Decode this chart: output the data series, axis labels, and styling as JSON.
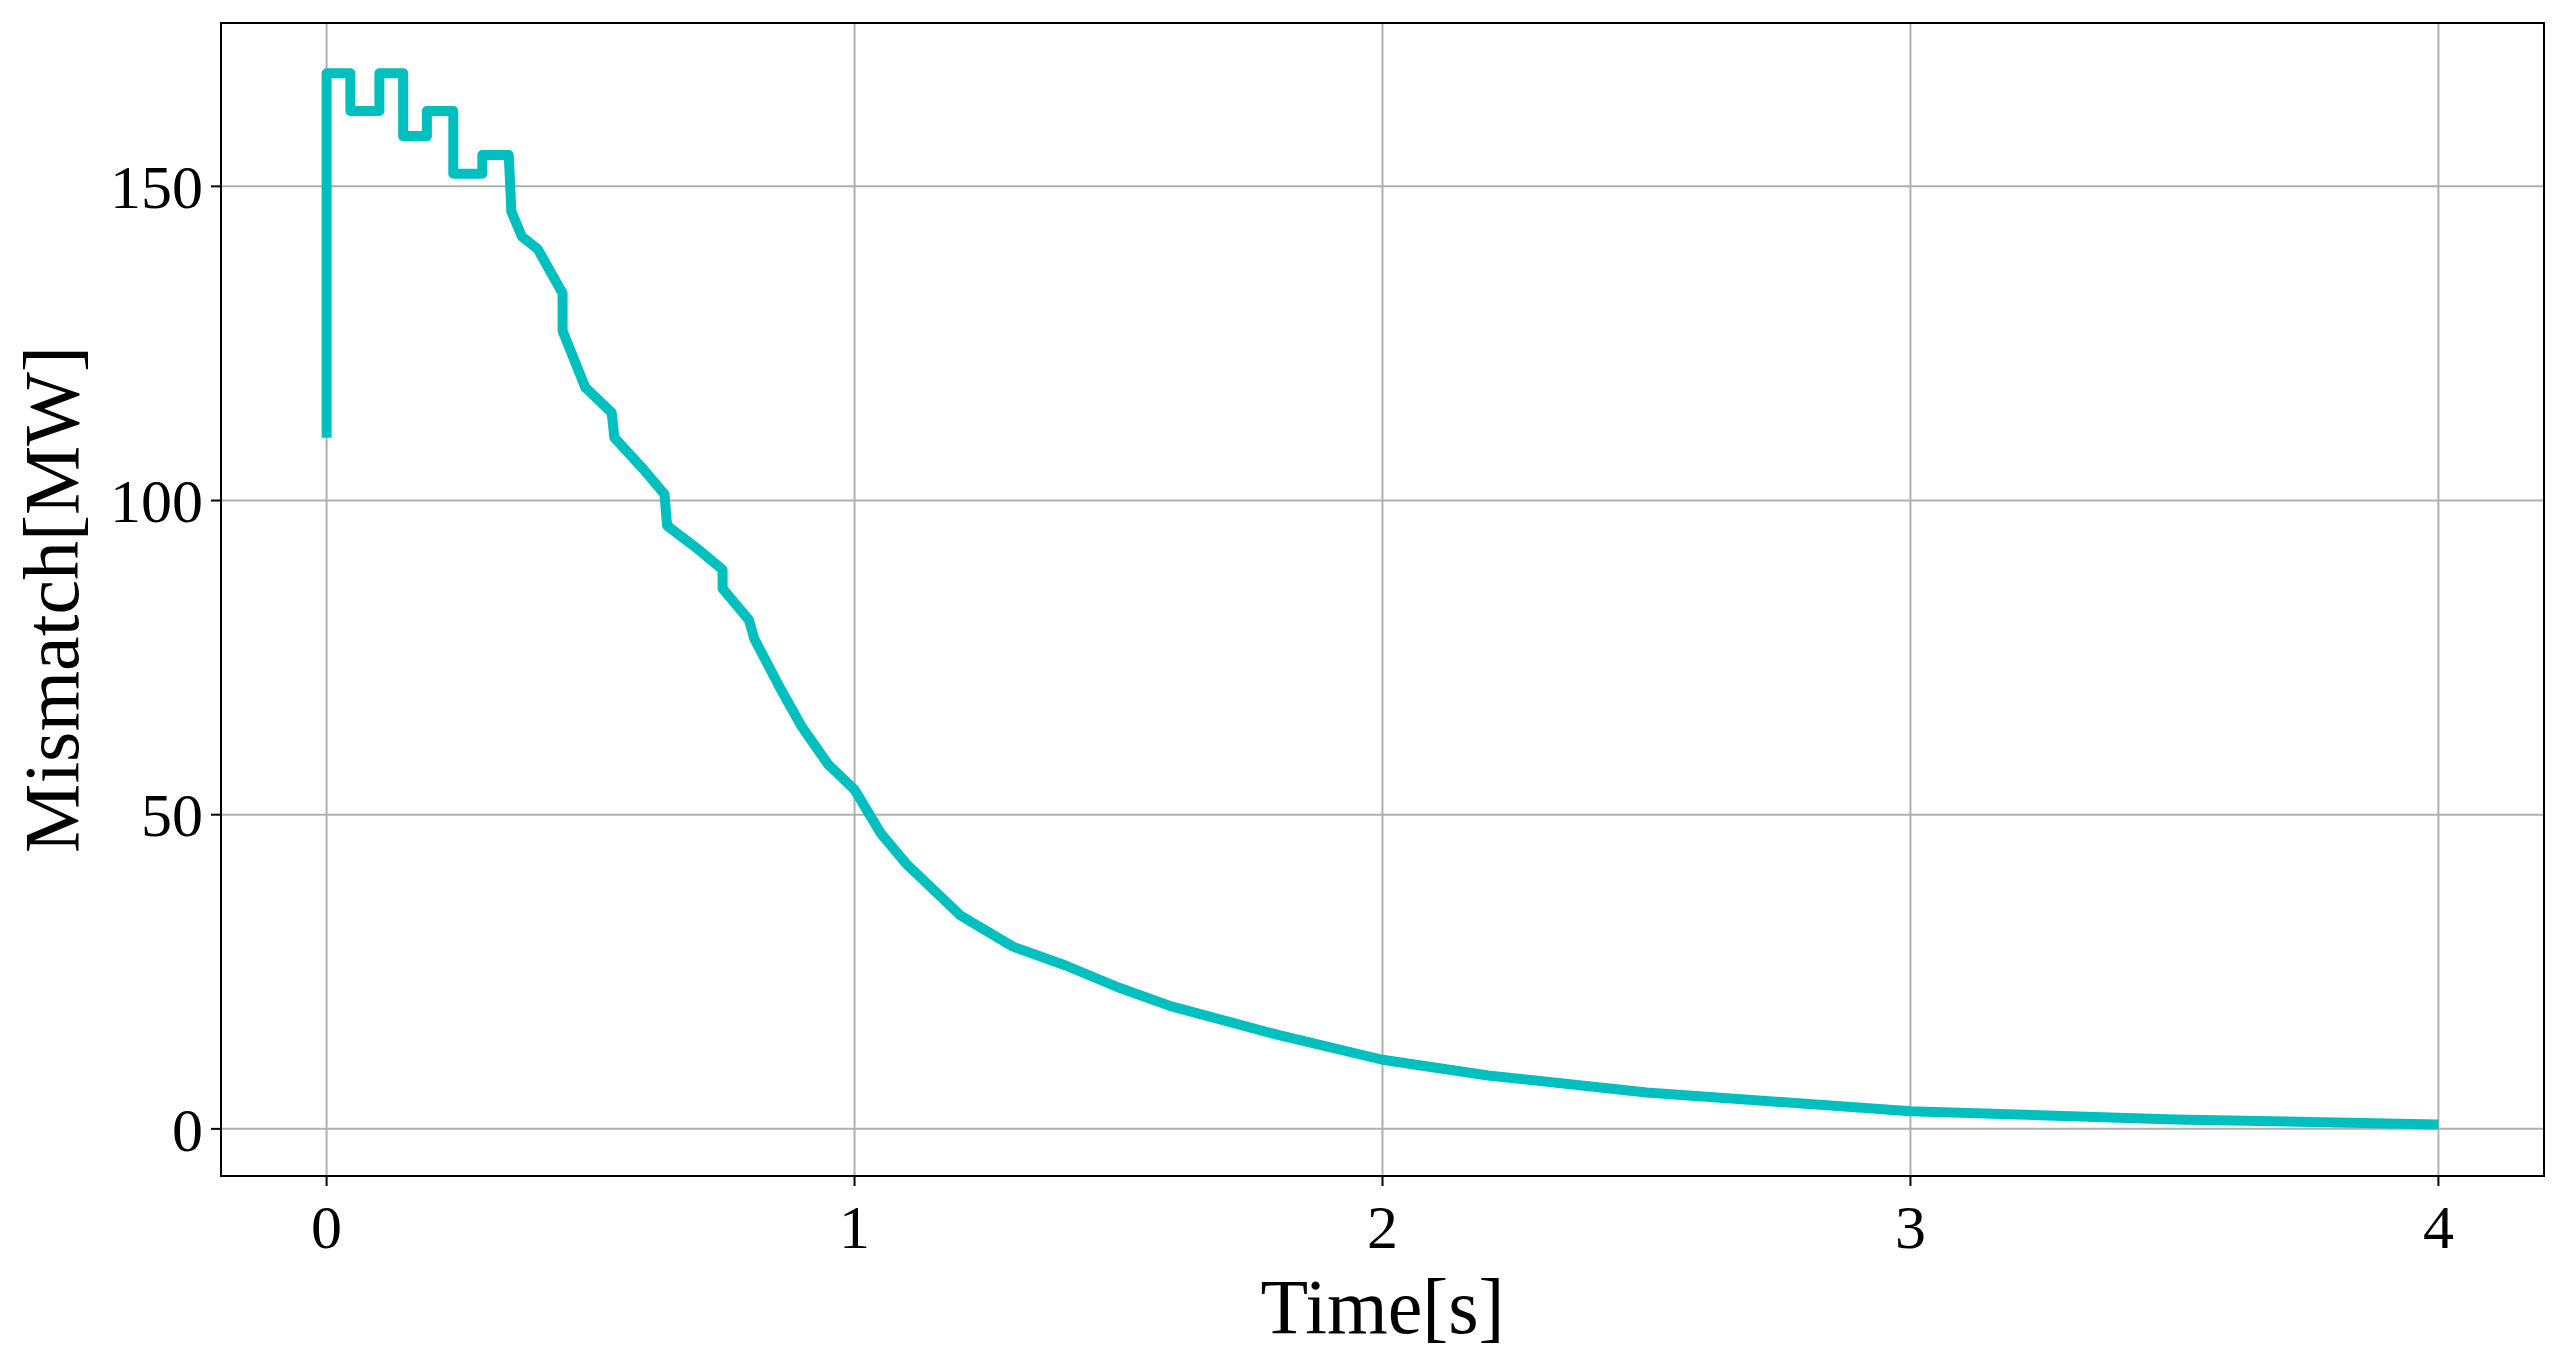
{
  "chart_data": {
    "type": "line",
    "xlabel": "Time[s]",
    "ylabel": "Mismatch[MW]",
    "xlim": [
      -0.2,
      4.2
    ],
    "ylim": [
      -7.5,
      176
    ],
    "xticks": [
      0,
      1,
      2,
      3,
      4
    ],
    "yticks": [
      0,
      50,
      100,
      150
    ],
    "grid": true,
    "marker": "none",
    "line_style": "solid",
    "series": [
      {
        "color": "#00bfbf",
        "x": [
          0,
          0,
          0.045,
          0.045,
          0.1,
          0.1,
          0.145,
          0.145,
          0.19,
          0.19,
          0.24,
          0.24,
          0.295,
          0.295,
          0.345,
          0.35,
          0.37,
          0.4,
          0.447,
          0.447,
          0.49,
          0.54,
          0.545,
          0.6,
          0.64,
          0.645,
          0.7,
          0.75,
          0.75,
          0.8,
          0.81,
          0.86,
          0.9,
          0.95,
          1.0,
          1.05,
          1.1,
          1.2,
          1.3,
          1.4,
          1.5,
          1.6,
          1.8,
          2.0,
          2.2,
          2.5,
          3.0,
          3.5,
          4.0
        ],
        "values": [
          110,
          168,
          168,
          162,
          162,
          168,
          168,
          158,
          158,
          162,
          162,
          152,
          152,
          155,
          155,
          146,
          142,
          140,
          133,
          127,
          118,
          114,
          110,
          105,
          101,
          96,
          92.5,
          89,
          86,
          81,
          78,
          70,
          64,
          58,
          54,
          47,
          42,
          34,
          29,
          26,
          22.5,
          19.5,
          15,
          11,
          8.5,
          5.8,
          2.8,
          1.5,
          0.7
        ]
      }
    ]
  }
}
